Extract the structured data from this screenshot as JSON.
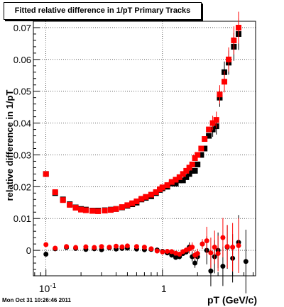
{
  "footer_text": "Mon Oct 31 10:26:46 2011",
  "chart_data": {
    "type": "scatter",
    "title": "Fitted relative difference in 1/pT  Primary Tracks",
    "xlabel": "pT (GeV/c)",
    "ylabel": "relative difference in 1/pT",
    "x_scale": "log",
    "xlim": [
      0.078,
      6.3
    ],
    "ylim": [
      -0.008,
      0.072
    ],
    "grid": true,
    "x_tick_labels": [
      {
        "value": 0.1,
        "base": "10",
        "exp": "-1"
      },
      {
        "value": 1,
        "base": "1",
        "exp": ""
      }
    ],
    "y_ticks": [
      0,
      0.01,
      0.02,
      0.03,
      0.04,
      0.05,
      0.06,
      0.07
    ],
    "y_tick_labels": [
      "0",
      "0.01",
      "0.02",
      "0.03",
      "0.04",
      "0.05",
      "0.06",
      "0.07"
    ],
    "series": [
      {
        "marker": "square",
        "color": "#000000",
        "x": [
          0.1,
          0.12,
          0.14,
          0.16,
          0.18,
          0.2,
          0.22,
          0.25,
          0.28,
          0.32,
          0.36,
          0.4,
          0.45,
          0.5,
          0.55,
          0.6,
          0.66,
          0.72,
          0.8,
          0.88,
          0.95,
          1.0,
          1.1,
          1.2,
          1.3,
          1.4,
          1.5,
          1.6,
          1.7,
          1.8,
          1.9,
          2.0,
          2.15,
          2.3,
          2.5,
          2.7,
          2.9,
          3.1,
          3.4,
          3.7,
          4.1,
          4.5
        ],
        "y": [
          0.024,
          0.018,
          0.016,
          0.0145,
          0.0135,
          0.013,
          0.0128,
          0.0125,
          0.0125,
          0.0126,
          0.0128,
          0.013,
          0.0135,
          0.014,
          0.0145,
          0.015,
          0.016,
          0.0165,
          0.017,
          0.018,
          0.019,
          0.0195,
          0.02,
          0.021,
          0.021,
          0.022,
          0.022,
          0.023,
          0.024,
          0.025,
          0.025,
          0.027,
          0.03,
          0.032,
          0.036,
          0.038,
          0.039,
          0.048,
          0.056,
          0.059,
          0.064,
          0.068
        ]
      },
      {
        "marker": "square",
        "color": "#ff0000",
        "x": [
          0.1,
          0.12,
          0.14,
          0.16,
          0.18,
          0.2,
          0.22,
          0.25,
          0.28,
          0.32,
          0.36,
          0.4,
          0.45,
          0.5,
          0.55,
          0.6,
          0.66,
          0.72,
          0.8,
          0.88,
          0.95,
          1.0,
          1.1,
          1.2,
          1.3,
          1.4,
          1.5,
          1.6,
          1.7,
          1.8,
          1.9,
          2.0,
          2.15,
          2.3,
          2.5,
          2.7,
          2.9,
          3.1,
          3.4,
          3.7,
          4.1,
          4.5
        ],
        "y": [
          0.024,
          0.0183,
          0.0158,
          0.0143,
          0.0134,
          0.0128,
          0.0126,
          0.0124,
          0.0123,
          0.0125,
          0.0127,
          0.013,
          0.0136,
          0.0142,
          0.0148,
          0.0154,
          0.0162,
          0.0168,
          0.0175,
          0.0183,
          0.0192,
          0.0198,
          0.0205,
          0.0215,
          0.0222,
          0.023,
          0.024,
          0.025,
          0.026,
          0.027,
          0.029,
          0.03,
          0.032,
          0.035,
          0.038,
          0.04,
          0.041,
          0.049,
          0.053,
          0.06,
          0.066,
          0.07
        ]
      },
      {
        "marker": "circle",
        "color": "#000000",
        "x": [
          0.1,
          0.12,
          0.15,
          0.18,
          0.22,
          0.26,
          0.3,
          0.35,
          0.4,
          0.45,
          0.5,
          0.6,
          0.7,
          0.8,
          0.9,
          1.0,
          1.1,
          1.2,
          1.3,
          1.4,
          1.5,
          1.6,
          1.7,
          1.8,
          1.9,
          2.0,
          2.2,
          2.4,
          2.6,
          2.8,
          3.0,
          3.3,
          3.6,
          4.0,
          4.5,
          5.2
        ],
        "y": [
          -0.0012,
          0.0005,
          0.0009,
          0.0006,
          0.0003,
          0.0005,
          0.0002,
          0.0008,
          0.0004,
          0.0006,
          0.0007,
          0.0004,
          0.0002,
          0.0003,
          0.0001,
          -0.0003,
          -0.0008,
          -0.0015,
          -0.0022,
          -0.002,
          -0.001,
          -0.0005,
          0.001,
          -0.002,
          -0.004,
          -0.002,
          0.002,
          0.0,
          -0.0065,
          -0.002,
          0.0,
          -0.005,
          0.001,
          -0.0025,
          0.0025,
          -0.0035
        ]
      },
      {
        "marker": "circle",
        "color": "#ff0000",
        "x": [
          0.1,
          0.12,
          0.15,
          0.18,
          0.22,
          0.26,
          0.3,
          0.35,
          0.4,
          0.45,
          0.5,
          0.6,
          0.7,
          0.8,
          0.9,
          1.0,
          1.1,
          1.2,
          1.3,
          1.4,
          1.5,
          1.6,
          1.7,
          1.8,
          1.9,
          2.0,
          2.2,
          2.4,
          2.6,
          2.8,
          3.0,
          3.3,
          3.6,
          4.0,
          4.5
        ],
        "y": [
          0.0018,
          0.0007,
          0.0012,
          0.0009,
          0.0011,
          0.0009,
          0.0012,
          0.001,
          0.0013,
          0.0011,
          0.0014,
          0.0012,
          0.001,
          0.0005,
          -0.0002,
          -0.0005,
          -0.0003,
          -0.0004,
          -0.0009,
          -0.0012,
          -0.0004,
          0.0001,
          0.0005,
          0.001,
          -0.0015,
          -0.001,
          0.002,
          0.003,
          -0.0008,
          0.001,
          -0.001,
          0.004,
          0.0012,
          0.001,
          0.0015
        ]
      }
    ]
  }
}
